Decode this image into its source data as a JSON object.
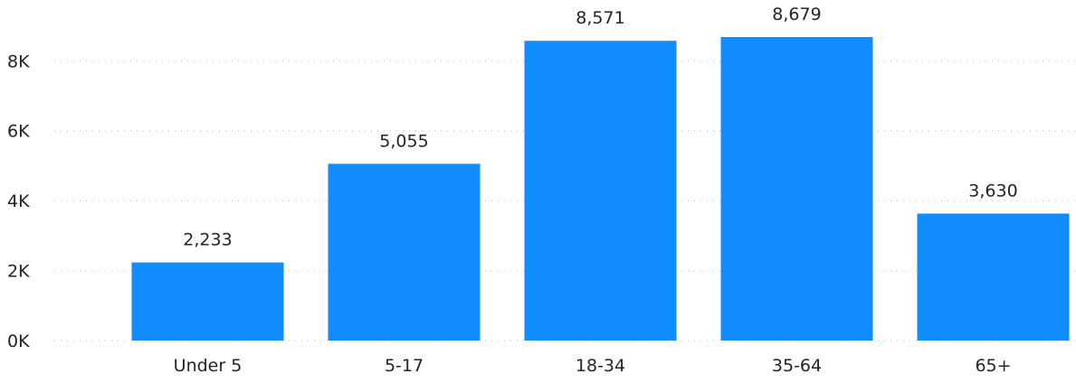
{
  "chart_data": {
    "type": "bar",
    "categories": [
      "Under 5",
      "5-17",
      "18-34",
      "35-64",
      "65+"
    ],
    "values": [
      2233,
      5055,
      8571,
      8679,
      3630
    ],
    "data_labels": [
      "2,233",
      "5,055",
      "8,571",
      "8,679",
      "3,630"
    ],
    "yticks": [
      0,
      2000,
      4000,
      6000,
      8000
    ],
    "ytick_labels": [
      "0K",
      "2K",
      "4K",
      "6K",
      "8K"
    ],
    "ylim": [
      0,
      8679
    ],
    "grid": true,
    "bar_color": "#118DFF",
    "title": "",
    "xlabel": "",
    "ylabel": ""
  }
}
